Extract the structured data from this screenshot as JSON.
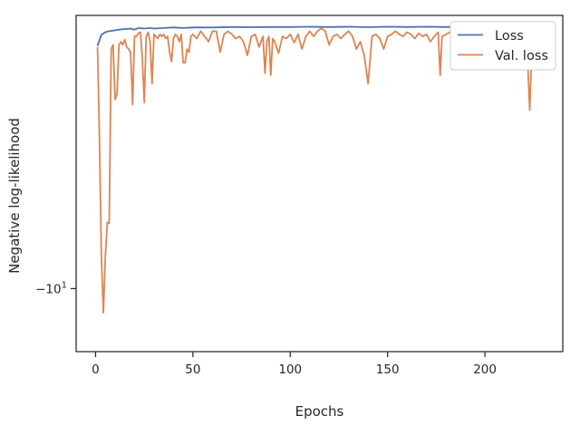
{
  "chart_data": {
    "type": "line",
    "title": "",
    "xlabel": "Epochs",
    "ylabel": "Negative log-likelihood",
    "xlim": [
      -10,
      240
    ],
    "ylim": [
      -10.6,
      -7.4
    ],
    "yscale": "symlog",
    "grid": false,
    "legend_placement": "top-right",
    "x_ticks": [
      {
        "value": 0,
        "label": "0"
      },
      {
        "value": 50,
        "label": "50"
      },
      {
        "value": 100,
        "label": "100"
      },
      {
        "value": 150,
        "label": "150"
      },
      {
        "value": 200,
        "label": "200"
      }
    ],
    "y_ticks": [
      {
        "value": -10,
        "label": "−10",
        "sup": "1"
      }
    ],
    "series": [
      {
        "name": "Loss",
        "color": "#4c72b0",
        "points": [
          [
            1,
            -7.69
          ],
          [
            3,
            -7.585
          ],
          [
            5,
            -7.56
          ],
          [
            7,
            -7.55
          ],
          [
            9,
            -7.545
          ],
          [
            12,
            -7.535
          ],
          [
            15,
            -7.53
          ],
          [
            18,
            -7.525
          ],
          [
            20,
            -7.535
          ],
          [
            22,
            -7.52
          ],
          [
            25,
            -7.525
          ],
          [
            28,
            -7.52
          ],
          [
            30,
            -7.525
          ],
          [
            35,
            -7.52
          ],
          [
            40,
            -7.515
          ],
          [
            45,
            -7.52
          ],
          [
            50,
            -7.515
          ],
          [
            60,
            -7.515
          ],
          [
            70,
            -7.51
          ],
          [
            80,
            -7.512
          ],
          [
            90,
            -7.51
          ],
          [
            100,
            -7.51
          ],
          [
            110,
            -7.508
          ],
          [
            120,
            -7.51
          ],
          [
            130,
            -7.508
          ],
          [
            140,
            -7.512
          ],
          [
            150,
            -7.508
          ],
          [
            160,
            -7.51
          ],
          [
            170,
            -7.508
          ],
          [
            180,
            -7.51
          ],
          [
            190,
            -7.508
          ],
          [
            200,
            -7.508
          ],
          [
            210,
            -7.507
          ],
          [
            220,
            -7.52
          ],
          [
            225,
            -7.51
          ],
          [
            229,
            -7.505
          ]
        ]
      },
      {
        "name": "Val. loss",
        "color": "#dd8452",
        "points": [
          [
            1,
            -7.7
          ],
          [
            2,
            -8.6
          ],
          [
            3,
            -9.7
          ],
          [
            4,
            -10.23
          ],
          [
            5,
            -9.7
          ],
          [
            6,
            -9.37
          ],
          [
            7,
            -9.38
          ],
          [
            8,
            -7.72
          ],
          [
            9,
            -7.68
          ],
          [
            10,
            -8.2
          ],
          [
            11,
            -8.15
          ],
          [
            12,
            -7.68
          ],
          [
            13,
            -7.65
          ],
          [
            14,
            -7.68
          ],
          [
            15,
            -7.63
          ],
          [
            16,
            -7.7
          ],
          [
            17,
            -7.72
          ],
          [
            18,
            -7.75
          ],
          [
            19,
            -8.25
          ],
          [
            20,
            -7.6
          ],
          [
            21,
            -7.6
          ],
          [
            22,
            -7.57
          ],
          [
            23,
            -7.56
          ],
          [
            24,
            -7.8
          ],
          [
            25,
            -8.23
          ],
          [
            26,
            -7.6
          ],
          [
            27,
            -7.56
          ],
          [
            28,
            -7.65
          ],
          [
            29,
            -8.05
          ],
          [
            30,
            -7.58
          ],
          [
            31,
            -7.6
          ],
          [
            32,
            -7.62
          ],
          [
            33,
            -7.58
          ],
          [
            34,
            -7.6
          ],
          [
            35,
            -7.58
          ],
          [
            36,
            -7.62
          ],
          [
            37,
            -7.6
          ],
          [
            38,
            -7.75
          ],
          [
            39,
            -7.84
          ],
          [
            40,
            -7.62
          ],
          [
            41,
            -7.58
          ],
          [
            42,
            -7.6
          ],
          [
            43,
            -7.65
          ],
          [
            44,
            -7.58
          ],
          [
            45,
            -7.85
          ],
          [
            46,
            -7.85
          ],
          [
            47,
            -7.72
          ],
          [
            48,
            -7.75
          ],
          [
            49,
            -7.6
          ],
          [
            50,
            -7.58
          ],
          [
            52,
            -7.62
          ],
          [
            54,
            -7.55
          ],
          [
            56,
            -7.6
          ],
          [
            58,
            -7.65
          ],
          [
            60,
            -7.55
          ],
          [
            62,
            -7.55
          ],
          [
            64,
            -7.75
          ],
          [
            66,
            -7.58
          ],
          [
            68,
            -7.55
          ],
          [
            70,
            -7.58
          ],
          [
            72,
            -7.62
          ],
          [
            74,
            -7.6
          ],
          [
            76,
            -7.65
          ],
          [
            78,
            -7.78
          ],
          [
            80,
            -7.6
          ],
          [
            82,
            -7.58
          ],
          [
            84,
            -7.7
          ],
          [
            86,
            -7.6
          ],
          [
            87,
            -7.95
          ],
          [
            88,
            -7.65
          ],
          [
            89,
            -7.6
          ],
          [
            90,
            -7.97
          ],
          [
            91,
            -7.62
          ],
          [
            92,
            -7.65
          ],
          [
            94,
            -7.76
          ],
          [
            96,
            -7.6
          ],
          [
            98,
            -7.62
          ],
          [
            100,
            -7.58
          ],
          [
            102,
            -7.66
          ],
          [
            104,
            -7.58
          ],
          [
            106,
            -7.72
          ],
          [
            108,
            -7.6
          ],
          [
            110,
            -7.55
          ],
          [
            112,
            -7.6
          ],
          [
            114,
            -7.55
          ],
          [
            116,
            -7.52
          ],
          [
            118,
            -7.55
          ],
          [
            120,
            -7.68
          ],
          [
            122,
            -7.6
          ],
          [
            124,
            -7.58
          ],
          [
            126,
            -7.62
          ],
          [
            128,
            -7.58
          ],
          [
            130,
            -7.55
          ],
          [
            132,
            -7.6
          ],
          [
            134,
            -7.72
          ],
          [
            136,
            -7.65
          ],
          [
            138,
            -7.78
          ],
          [
            140,
            -8.05
          ],
          [
            142,
            -7.6
          ],
          [
            144,
            -7.58
          ],
          [
            146,
            -7.62
          ],
          [
            148,
            -7.72
          ],
          [
            150,
            -7.6
          ],
          [
            152,
            -7.58
          ],
          [
            154,
            -7.55
          ],
          [
            156,
            -7.58
          ],
          [
            158,
            -7.6
          ],
          [
            160,
            -7.56
          ],
          [
            162,
            -7.58
          ],
          [
            164,
            -7.62
          ],
          [
            166,
            -7.57
          ],
          [
            168,
            -7.6
          ],
          [
            170,
            -7.58
          ],
          [
            172,
            -7.65
          ],
          [
            174,
            -7.6
          ],
          [
            176,
            -7.56
          ],
          [
            177,
            -7.97
          ],
          [
            178,
            -7.6
          ],
          [
            180,
            -7.58
          ],
          [
            182,
            -7.56
          ],
          [
            184,
            -7.6
          ],
          [
            186,
            -7.58
          ],
          [
            188,
            -7.62
          ],
          [
            190,
            -7.65
          ],
          [
            192,
            -7.58
          ],
          [
            194,
            -7.62
          ],
          [
            196,
            -7.6
          ],
          [
            198,
            -7.56
          ],
          [
            200,
            -7.58
          ],
          [
            202,
            -7.55
          ],
          [
            204,
            -7.58
          ],
          [
            206,
            -7.62
          ],
          [
            208,
            -7.55
          ],
          [
            210,
            -7.52
          ],
          [
            212,
            -7.55
          ],
          [
            214,
            -7.62
          ],
          [
            216,
            -7.58
          ],
          [
            218,
            -7.64
          ],
          [
            220,
            -7.68
          ],
          [
            221,
            -7.8
          ],
          [
            222,
            -7.85
          ],
          [
            223,
            -8.3
          ],
          [
            224,
            -7.8
          ],
          [
            225,
            -7.7
          ],
          [
            226,
            -7.72
          ],
          [
            227,
            -7.75
          ],
          [
            228,
            -7.65
          ],
          [
            229,
            -7.7
          ]
        ]
      }
    ]
  }
}
